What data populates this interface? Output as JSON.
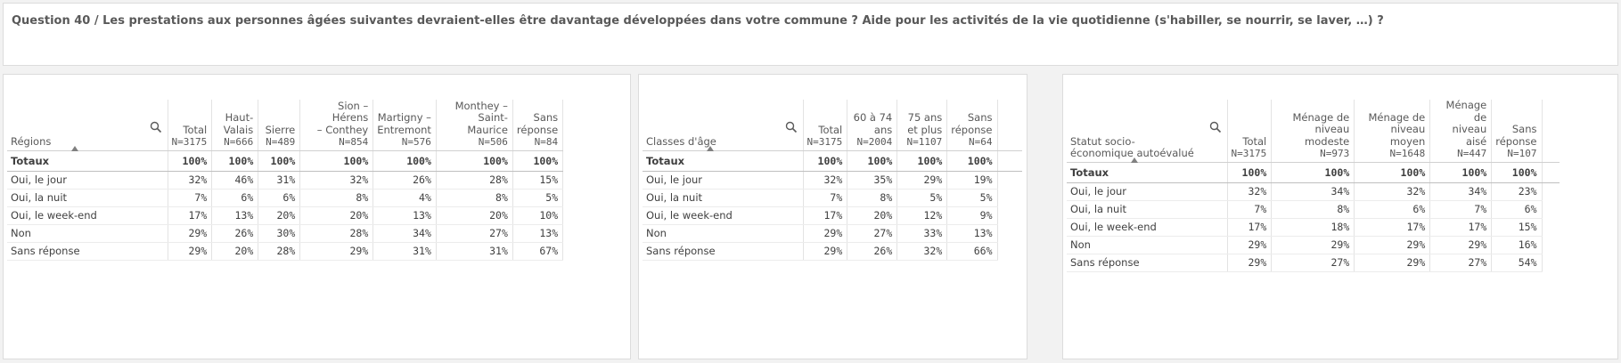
{
  "title": "Question 40 / Les prestations aux personnes âgées suivantes devraient-elles être davantage développées dans votre commune ? Aide pour les activités de la vie quotidienne (s'habiller, se nourrir, se laver, …) ?",
  "tables": [
    {
      "dim_label": "Régions",
      "columns": [
        {
          "label": "Total",
          "n": "N=3175"
        },
        {
          "label": "Haut-\nValais",
          "n": "N=666"
        },
        {
          "label": "Sierre",
          "n": "N=489"
        },
        {
          "label": "Sion – Hérens\n– Conthey",
          "n": "N=854"
        },
        {
          "label": "Martigny –\nEntremont",
          "n": "N=576"
        },
        {
          "label": "Monthey –\nSaint-Maurice",
          "n": "N=506"
        },
        {
          "label": "Sans\nréponse",
          "n": "N=84"
        }
      ],
      "totals_label": "Totaux",
      "totals": [
        "100%",
        "100%",
        "100%",
        "100%",
        "100%",
        "100%",
        "100%"
      ],
      "rows": [
        {
          "label": "Oui, le jour",
          "values": [
            "32%",
            "46%",
            "31%",
            "32%",
            "26%",
            "28%",
            "15%"
          ]
        },
        {
          "label": "Oui, la nuit",
          "values": [
            "7%",
            "6%",
            "6%",
            "8%",
            "4%",
            "8%",
            "5%"
          ]
        },
        {
          "label": "Oui, le week-end",
          "values": [
            "17%",
            "13%",
            "20%",
            "20%",
            "13%",
            "20%",
            "10%"
          ]
        },
        {
          "label": "Non",
          "values": [
            "29%",
            "26%",
            "30%",
            "28%",
            "34%",
            "27%",
            "13%"
          ]
        },
        {
          "label": "Sans réponse",
          "values": [
            "29%",
            "20%",
            "28%",
            "29%",
            "31%",
            "31%",
            "67%"
          ]
        }
      ]
    },
    {
      "dim_label": "Classes d'âge",
      "columns": [
        {
          "label": "Total",
          "n": "N=3175"
        },
        {
          "label": "60 à 74\nans",
          "n": "N=2004"
        },
        {
          "label": "75 ans\net plus",
          "n": "N=1107"
        },
        {
          "label": "Sans\nréponse",
          "n": "N=64"
        }
      ],
      "totals_label": "Totaux",
      "totals": [
        "100%",
        "100%",
        "100%",
        "100%"
      ],
      "rows": [
        {
          "label": "Oui, le jour",
          "values": [
            "32%",
            "35%",
            "29%",
            "19%"
          ]
        },
        {
          "label": "Oui, la nuit",
          "values": [
            "7%",
            "8%",
            "5%",
            "5%"
          ]
        },
        {
          "label": "Oui, le week-end",
          "values": [
            "17%",
            "20%",
            "12%",
            "9%"
          ]
        },
        {
          "label": "Non",
          "values": [
            "29%",
            "27%",
            "33%",
            "13%"
          ]
        },
        {
          "label": "Sans réponse",
          "values": [
            "29%",
            "26%",
            "32%",
            "66%"
          ]
        }
      ]
    },
    {
      "dim_label": "Statut socio-\néconomique autoévalué",
      "columns": [
        {
          "label": "Total",
          "n": "N=3175"
        },
        {
          "label": "Ménage de\nniveau modeste",
          "n": "N=973"
        },
        {
          "label": "Ménage de\nniveau moyen",
          "n": "N=1648"
        },
        {
          "label": "Ménage de\nniveau aisé",
          "n": "N=447"
        },
        {
          "label": "Sans\nréponse",
          "n": "N=107"
        }
      ],
      "totals_label": "Totaux",
      "totals": [
        "100%",
        "100%",
        "100%",
        "100%",
        "100%"
      ],
      "rows": [
        {
          "label": "Oui, le jour",
          "values": [
            "32%",
            "34%",
            "32%",
            "34%",
            "23%"
          ]
        },
        {
          "label": "Oui, la nuit",
          "values": [
            "7%",
            "8%",
            "6%",
            "7%",
            "6%"
          ]
        },
        {
          "label": "Oui, le week-end",
          "values": [
            "17%",
            "18%",
            "17%",
            "17%",
            "15%"
          ]
        },
        {
          "label": "Non",
          "values": [
            "29%",
            "29%",
            "29%",
            "29%",
            "16%"
          ]
        },
        {
          "label": "Sans réponse",
          "values": [
            "29%",
            "27%",
            "29%",
            "27%",
            "54%"
          ]
        }
      ]
    }
  ]
}
